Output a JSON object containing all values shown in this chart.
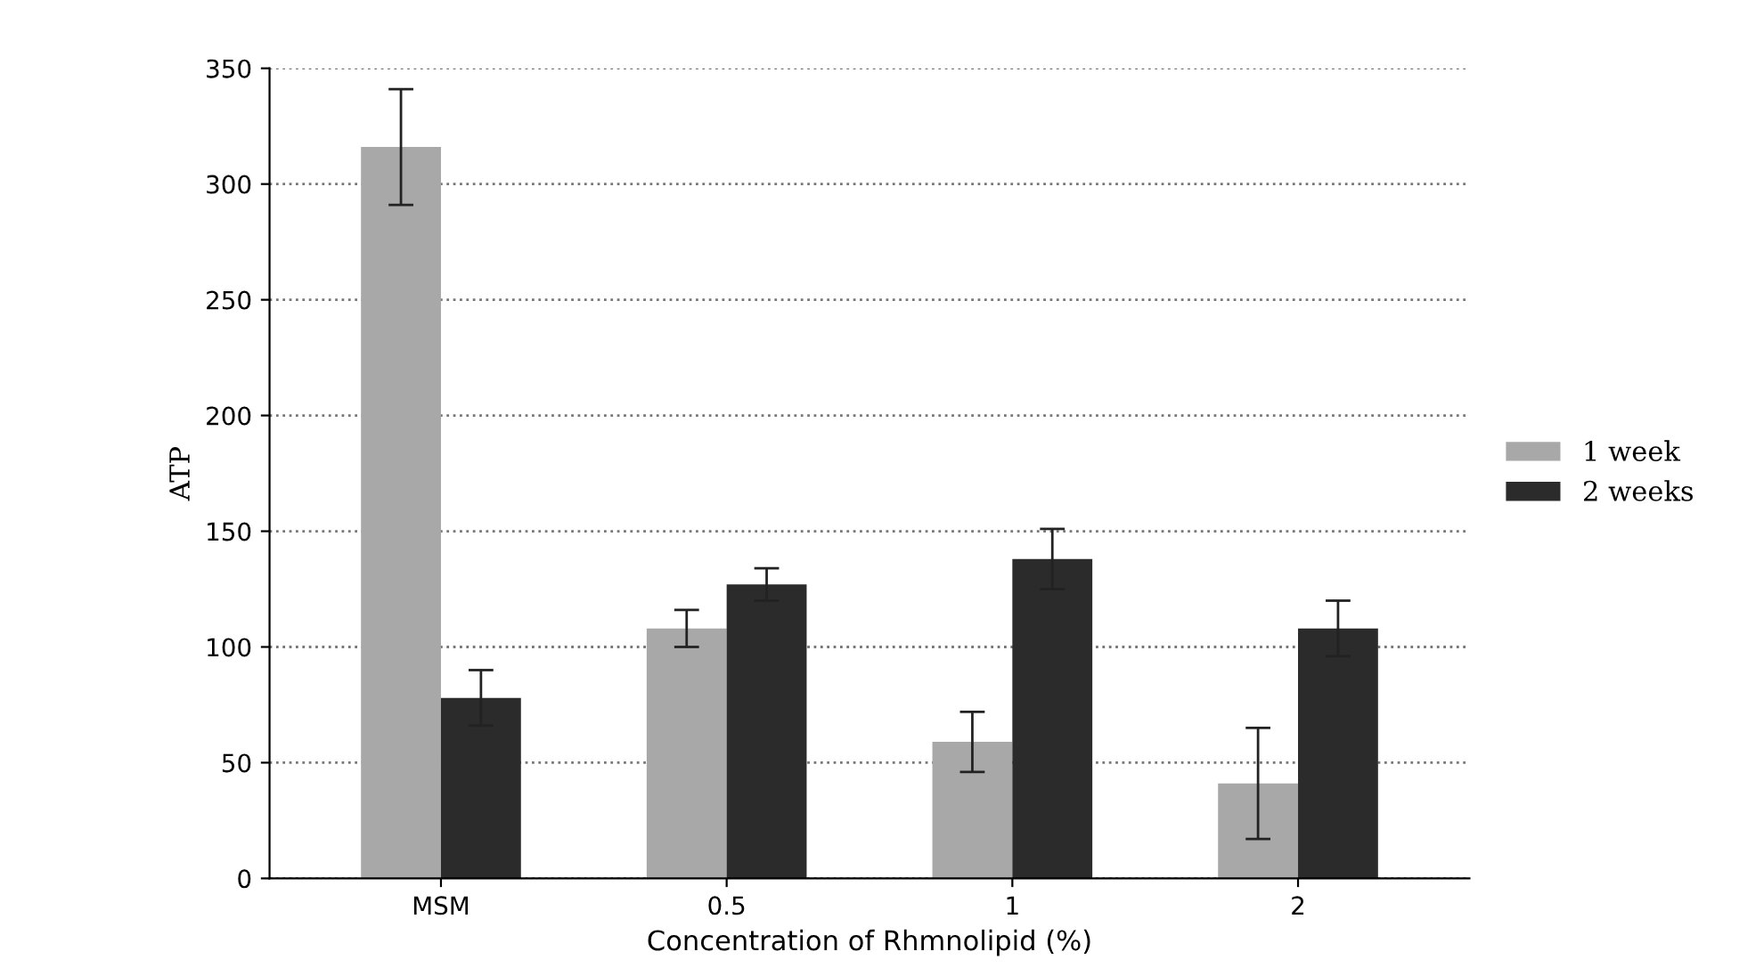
{
  "chart_data": {
    "type": "bar",
    "xlabel": "Concentration of Rhmnolipid (%)",
    "ylabel": "ATP",
    "categories": [
      "MSM",
      "0.5",
      "1",
      "2"
    ],
    "series": [
      {
        "name": "1 week",
        "color": "#a8a8a8",
        "values": [
          316,
          108,
          59,
          41
        ],
        "errors": [
          25,
          8,
          13,
          24
        ]
      },
      {
        "name": "2 weeks",
        "color": "#2b2b2b",
        "values": [
          78,
          127,
          138,
          108
        ],
        "errors": [
          12,
          7,
          13,
          12
        ]
      }
    ],
    "ylim": [
      0,
      350
    ],
    "yticks": [
      0,
      50,
      100,
      150,
      200,
      250,
      300,
      350
    ],
    "grid": "y",
    "legend": "right"
  }
}
